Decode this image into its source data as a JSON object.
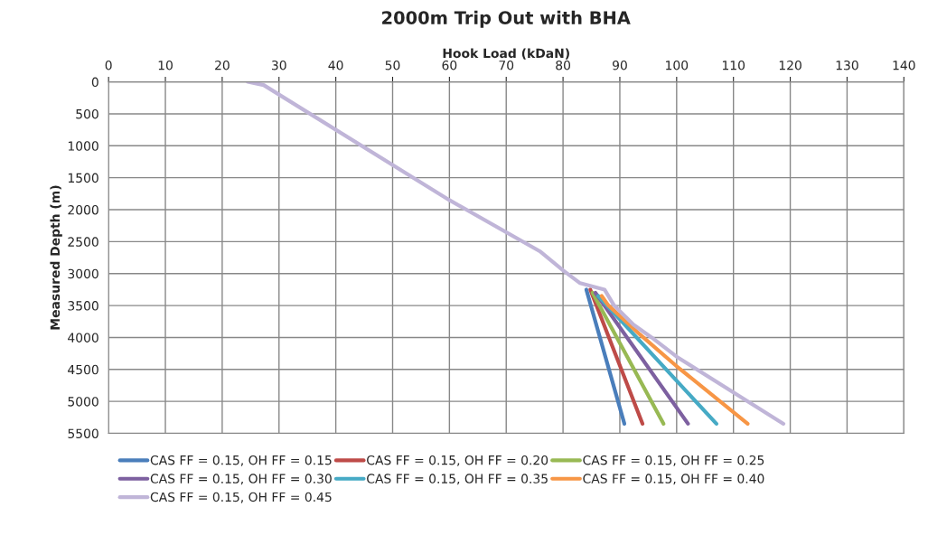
{
  "chart_data": {
    "type": "line",
    "title": "2000m Trip Out with BHA",
    "xlabel": "Hook Load (kDaN)",
    "ylabel": "Measured Depth (m)",
    "xlim": [
      0,
      140
    ],
    "xticks": [
      0,
      10,
      20,
      30,
      40,
      50,
      60,
      70,
      80,
      90,
      100,
      110,
      120,
      130,
      140
    ],
    "ylim": [
      5500,
      0
    ],
    "yticks": [
      0,
      500,
      1000,
      1500,
      2000,
      2500,
      3000,
      3500,
      4000,
      4500,
      5000,
      5500
    ],
    "grid": true,
    "legend": "bottom",
    "marker": "none",
    "line_style": "solid",
    "series": [
      {
        "name": "CAS FF = 0.15, OH FF = 0.15",
        "color": "#4a7ebb",
        "x": [
          84.1,
          90.8
        ],
        "values": [
          3250,
          5350
        ]
      },
      {
        "name": "CAS FF = 0.15, OH FF = 0.20",
        "color": "#be4b48",
        "x": [
          84.8,
          94.0
        ],
        "values": [
          3250,
          5350
        ]
      },
      {
        "name": "CAS FF = 0.15, OH FF = 0.25",
        "color": "#98b954",
        "x": [
          85.2,
          97.7
        ],
        "values": [
          3300,
          5350
        ]
      },
      {
        "name": "CAS FF = 0.15, OH FF = 0.30",
        "color": "#7d60a0",
        "x": [
          85.7,
          102
        ],
        "values": [
          3300,
          5350
        ]
      },
      {
        "name": "CAS FF = 0.15, OH FF = 0.35",
        "color": "#46aac5",
        "x": [
          86.2,
          107
        ],
        "values": [
          3350,
          5350
        ]
      },
      {
        "name": "CAS FF = 0.15, OH FF = 0.40",
        "color": "#f79646",
        "x": [
          86.8,
          88,
          93.5,
          100,
          112.5
        ],
        "values": [
          3350,
          3500,
          3950,
          4450,
          5350
        ]
      },
      {
        "name": "CAS FF = 0.15, OH FF = 0.45",
        "color": "#c0b5d8",
        "x": [
          24.5,
          27.3,
          60,
          75.9,
          80,
          83,
          87.3,
          89,
          92.4,
          95.6,
          100,
          118.8
        ],
        "values": [
          0,
          50,
          1850,
          2650,
          2950,
          3150,
          3250,
          3500,
          3800,
          4000,
          4300,
          5350
        ]
      }
    ]
  }
}
